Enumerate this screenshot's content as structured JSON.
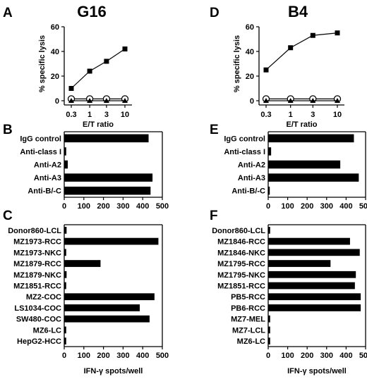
{
  "figure": {
    "titles": {
      "left": "G16",
      "right": "B4"
    }
  },
  "chart_data": [
    {
      "id": "A",
      "type": "line",
      "panel_letter": "A",
      "title": "G16",
      "xlabel": "E/T ratio",
      "ylabel": "% specific lysis",
      "x": [
        0.3,
        1,
        3,
        10
      ],
      "x_ticks": [
        "0.3",
        "1",
        "3",
        "10"
      ],
      "x_scale": "log",
      "ylim": [
        0,
        60
      ],
      "y_ticks": [
        0,
        20,
        40,
        60
      ],
      "series": [
        {
          "marker": "filled-square",
          "values": [
            10,
            24,
            32,
            42
          ]
        },
        {
          "marker": "open-circle",
          "values": [
            1.5,
            1.5,
            1.5,
            1.5
          ]
        },
        {
          "marker": "filled-triangle",
          "values": [
            0,
            0,
            0,
            0
          ]
        }
      ],
      "grid": false
    },
    {
      "id": "D",
      "type": "line",
      "panel_letter": "D",
      "title": "B4",
      "xlabel": "E/T ratio",
      "ylabel": "% specific lysis",
      "x": [
        0.3,
        1,
        3,
        10
      ],
      "x_ticks": [
        "0.3",
        "1",
        "3",
        "10"
      ],
      "x_scale": "log",
      "ylim": [
        0,
        60
      ],
      "y_ticks": [
        0,
        20,
        40,
        60
      ],
      "series": [
        {
          "marker": "filled-square",
          "values": [
            25,
            43,
            53,
            55
          ]
        },
        {
          "marker": "open-circle",
          "values": [
            1.5,
            1.5,
            1.5,
            1.5
          ]
        },
        {
          "marker": "filled-triangle",
          "values": [
            0,
            0,
            0,
            0
          ]
        }
      ],
      "grid": false
    },
    {
      "id": "B",
      "type": "bar",
      "orientation": "horizontal",
      "panel_letter": "B",
      "categories": [
        "IgG control",
        "Anti-class I",
        "Anti-A2",
        "Anti-A3",
        "Anti-B/-C"
      ],
      "values": [
        430,
        10,
        18,
        450,
        440
      ],
      "xlim": [
        0,
        500
      ],
      "x_ticks": [
        0,
        100,
        200,
        300,
        400,
        500
      ],
      "xlabel": ""
    },
    {
      "id": "E",
      "type": "bar",
      "orientation": "horizontal",
      "panel_letter": "E",
      "categories": [
        "IgG control",
        "Anti-class I",
        "Anti-A2",
        "Anti-A3",
        "Anti-B/-C"
      ],
      "values": [
        440,
        15,
        370,
        465,
        8
      ],
      "xlim": [
        0,
        500
      ],
      "x_ticks": [
        0,
        100,
        200,
        300,
        400,
        500
      ],
      "xlabel": ""
    },
    {
      "id": "C",
      "type": "bar",
      "orientation": "horizontal",
      "panel_letter": "C",
      "categories": [
        "Donor860-LCL",
        "MZ1973-RCC",
        "MZ1973-NKC",
        "MZ1879-RCC",
        "MZ1879-NKC",
        "MZ1851-RCC",
        "MZ2-COC",
        "LS1034-COC",
        "SW480-COC",
        "MZ6-LC",
        "HepG2-HCC"
      ],
      "values": [
        12,
        480,
        10,
        185,
        12,
        10,
        460,
        385,
        435,
        10,
        10
      ],
      "xlim": [
        0,
        500
      ],
      "x_ticks": [
        0,
        100,
        200,
        300,
        400,
        500
      ],
      "xlabel": "IFN-γ spots/well"
    },
    {
      "id": "F",
      "type": "bar",
      "orientation": "horizontal",
      "panel_letter": "F",
      "categories": [
        "Donor860-LCL",
        "MZ1846-RCC",
        "MZ1846-NKC",
        "MZ1795-RCC",
        "MZ1795-NKC",
        "MZ1851-RCC",
        "PB5-RCC",
        "PB6-RCC",
        "MZ7-MEL",
        "MZ7-LCL",
        "MZ6-LC"
      ],
      "values": [
        10,
        420,
        470,
        320,
        450,
        445,
        475,
        475,
        10,
        10,
        10
      ],
      "xlim": [
        0,
        500
      ],
      "x_ticks": [
        0,
        100,
        200,
        300,
        400,
        500
      ],
      "xlabel": "IFN-γ spots/well"
    }
  ]
}
